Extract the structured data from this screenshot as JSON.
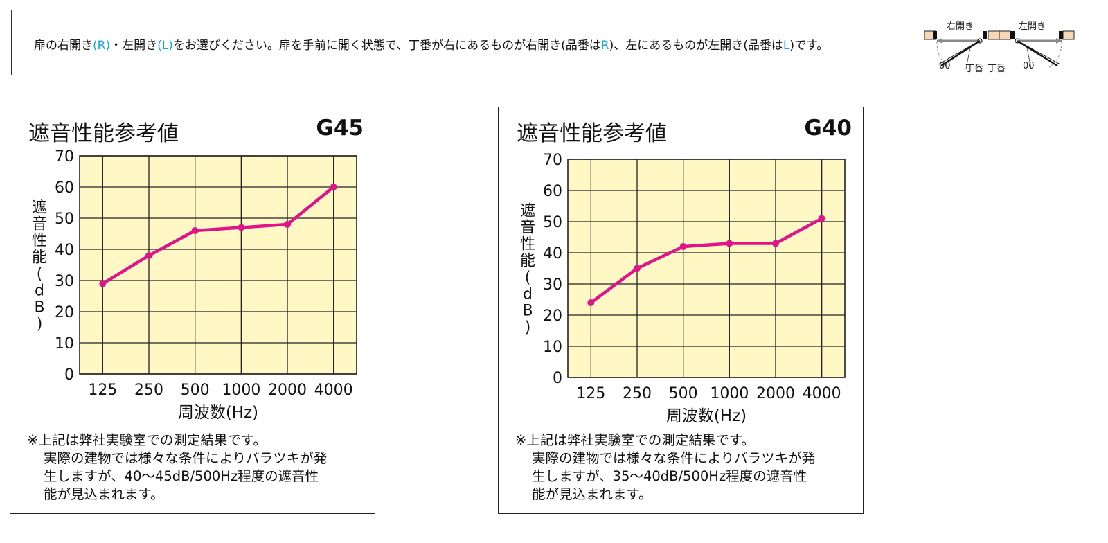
{
  "header": {
    "seg1": "扉の右開き",
    "seg2": "(R)",
    "seg3": "・左開き",
    "seg4": "(L)",
    "seg5": "をお選びください。扉を手前に開く状態で、丁番が右にあるものが右開き(品番は",
    "seg6": "R",
    "seg7": ")、左にあるものが左開き(品番は",
    "seg8": "L",
    "seg9": ")です。",
    "right_open_label": "右開き",
    "left_open_label": "左開き",
    "hinge_label_right": "丁番",
    "hinge_label_left": "丁番",
    "handle_mark": "00",
    "highlight_color": "#1aa4d8"
  },
  "panels": [
    {
      "title": "遮音性能参考値",
      "code": "G45",
      "note": {
        "line1": "※上記は弊社実験室での測定結果です。",
        "line2": "実際の建物では様々な条件によりバラツキが発",
        "line3": "生しますが、40〜45dB/500Hz程度の遮音性",
        "line4": "能が見込まれます。"
      }
    },
    {
      "title": "遮音性能参考値",
      "code": "G40",
      "note": {
        "line1": "※上記は弊社実験室での測定結果です。",
        "line2": "実際の建物では様々な条件によりバラツキが発",
        "line3": "生しますが、35〜40dB/500Hz程度の遮音性",
        "line4": "能が見込まれます。"
      }
    }
  ],
  "chart_data": [
    {
      "type": "line",
      "title": "遮音性能参考値",
      "code": "G45",
      "categories": [
        "125",
        "250",
        "500",
        "1000",
        "2000",
        "4000"
      ],
      "series": [
        {
          "values": [
            29,
            38,
            46,
            47,
            48,
            60
          ]
        }
      ],
      "xlabel": "周波数(Hz)",
      "ylabel": "遮音性能(dB)",
      "ylim": [
        0,
        70
      ],
      "yticks": [
        "0",
        "10",
        "20",
        "30",
        "40",
        "50",
        "60",
        "70"
      ],
      "grid": true,
      "line_color": "#e0148a",
      "plot_bg": "#fff8c4"
    },
    {
      "type": "line",
      "title": "遮音性能参考値",
      "code": "G40",
      "categories": [
        "125",
        "250",
        "500",
        "1000",
        "2000",
        "4000"
      ],
      "series": [
        {
          "values": [
            24,
            35,
            42,
            43,
            43,
            51
          ]
        }
      ],
      "xlabel": "周波数(Hz)",
      "ylabel": "遮音性能(dB)",
      "ylim": [
        0,
        70
      ],
      "yticks": [
        "0",
        "10",
        "20",
        "30",
        "40",
        "50",
        "60",
        "70"
      ],
      "grid": true,
      "line_color": "#e0148a",
      "plot_bg": "#fff8c4"
    }
  ]
}
